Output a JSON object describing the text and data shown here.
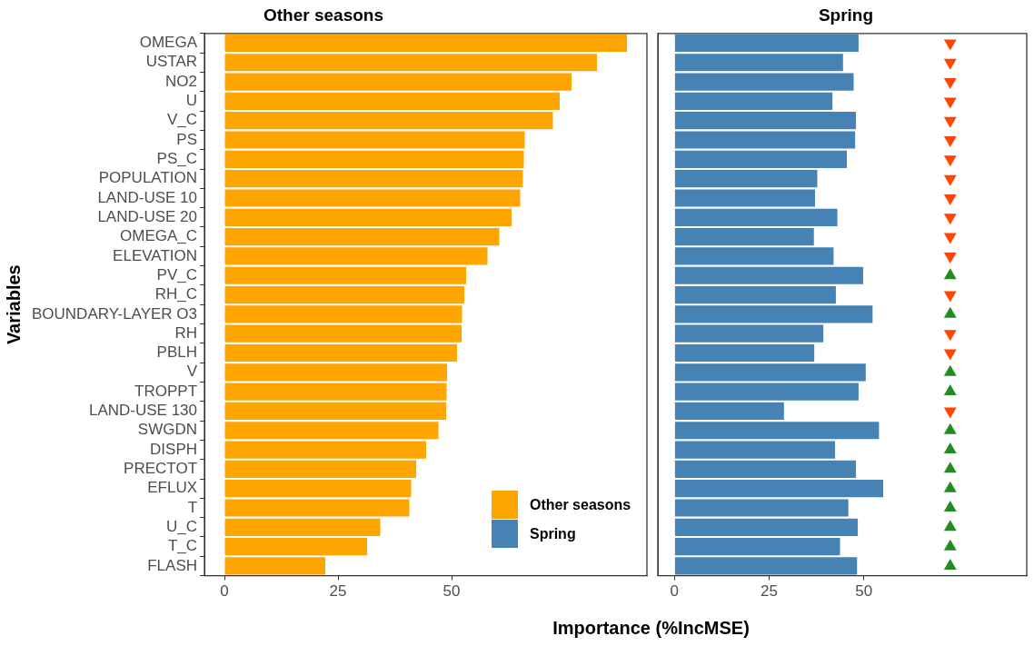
{
  "chart_data": [
    {
      "type": "bar",
      "orientation": "horizontal",
      "title": "Other seasons",
      "ylabel": "Variables",
      "xlabel": "Importance (%IncMSE)",
      "categories": [
        "OMEGA",
        "USTAR",
        "NO2",
        "U",
        "V_C",
        "PS",
        "PS_C",
        "POPULATION",
        "LAND-USE 10",
        "LAND-USE 20",
        "OMEGA_C",
        "ELEVATION",
        "PV_C",
        "RH_C",
        "BOUNDARY-LAYER O3",
        "RH",
        "PBLH",
        "V",
        "TROPPT",
        "LAND-USE 130",
        "SWGDN",
        "DISPH",
        "PRECTOT",
        "EFLUX",
        "T",
        "U_C",
        "T_C",
        "FLASH"
      ],
      "series": [
        {
          "name": "Other seasons",
          "color": "#ffa500",
          "values": [
            88.6,
            82.0,
            76.4,
            73.8,
            72.3,
            66.1,
            65.9,
            65.7,
            65.1,
            63.2,
            60.5,
            57.9,
            53.2,
            52.8,
            52.3,
            52.2,
            51.2,
            49.0,
            48.9,
            48.8,
            47.1,
            44.4,
            42.2,
            41.1,
            40.7,
            34.3,
            31.4,
            22.2
          ]
        }
      ],
      "xlim": [
        -4.4,
        93
      ],
      "xticks": [
        0,
        25,
        50
      ],
      "grid": false,
      "legend": "bottom right"
    },
    {
      "type": "bar",
      "orientation": "horizontal",
      "title": "Spring",
      "series": [
        {
          "name": "Spring",
          "color": "#4682b4",
          "values": [
            48.6,
            44.5,
            47.3,
            41.7,
            47.9,
            47.7,
            45.5,
            37.7,
            37.1,
            43.0,
            36.8,
            42.0,
            49.8,
            42.6,
            52.3,
            39.3,
            36.9,
            50.5,
            48.6,
            28.9,
            54.0,
            42.4,
            47.9,
            55.1,
            45.9,
            48.4,
            43.7,
            48.2
          ]
        },
        {
          "type": "scatter",
          "marker": "triangle",
          "color": "#228b22",
          "values": [
            null,
            null,
            null,
            null,
            null,
            null,
            null,
            null,
            null,
            null,
            null,
            null,
            72.8,
            null,
            72.8,
            null,
            null,
            72.8,
            72.8,
            null,
            72.8,
            72.8,
            72.8,
            72.8,
            72.8,
            72.8,
            72.8,
            72.8
          ]
        },
        {
          "type": "scatter",
          "marker": "triangle-down",
          "color": "#ff4500",
          "values": [
            72.8,
            72.8,
            72.8,
            72.8,
            72.8,
            72.8,
            72.8,
            72.8,
            72.8,
            72.8,
            72.8,
            72.8,
            null,
            72.8,
            null,
            72.8,
            72.8,
            null,
            null,
            72.8,
            null,
            null,
            null,
            null,
            null,
            null,
            null,
            null
          ]
        }
      ],
      "xlim": [
        -4.4,
        93
      ],
      "xticks": [
        0,
        25,
        50
      ],
      "grid": false,
      "tick_labels": "x"
    }
  ]
}
